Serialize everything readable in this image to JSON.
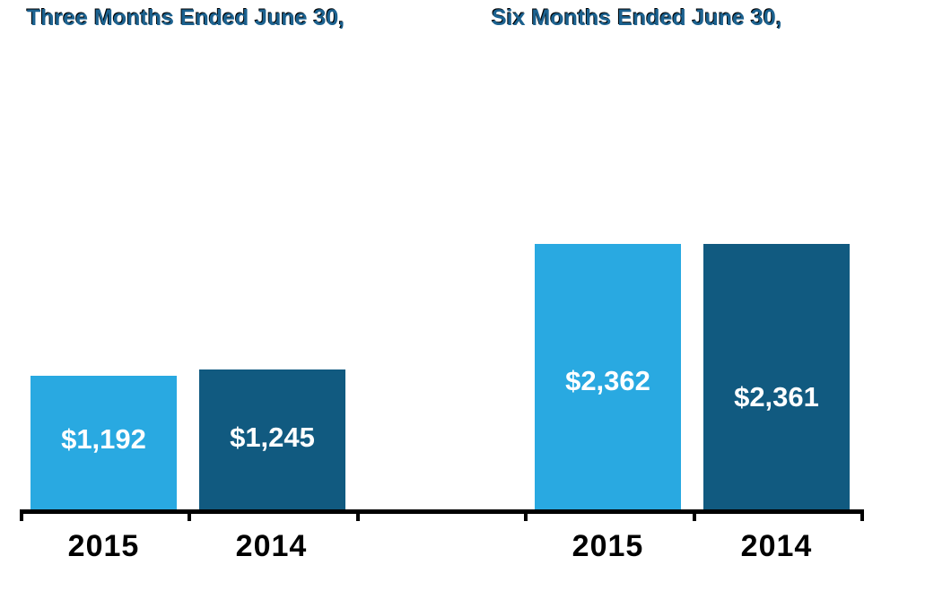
{
  "chart_data": {
    "type": "bar",
    "titles": {
      "left": "Three Months Ended June 30,",
      "right": "Six Months Ended June 30,"
    },
    "groups": [
      {
        "title": "Three Months Ended June 30,",
        "categories": [
          "2015",
          "2014"
        ],
        "bars": [
          {
            "category": "2015",
            "value": 1192,
            "label": "$1,192"
          },
          {
            "category": "2014",
            "value": 1245,
            "label": "$1,245"
          }
        ]
      },
      {
        "title": "Six Months Ended June 30,",
        "categories": [
          "2015",
          "2014"
        ],
        "bars": [
          {
            "category": "2015",
            "value": 2362,
            "label": "$2,362"
          },
          {
            "category": "2014",
            "value": 2361,
            "label": "$2,361"
          }
        ]
      }
    ],
    "series_colors": {
      "2015": "#29A9E1",
      "2014": "#115A80"
    },
    "value_label_color": "#FFFFFF",
    "title_color": "#1C6290",
    "axis_color": "#000000",
    "category_label_color": "#000000",
    "ylim": [
      0,
      2362
    ],
    "grid": false,
    "legend": "none",
    "xlabel": "",
    "ylabel": ""
  }
}
